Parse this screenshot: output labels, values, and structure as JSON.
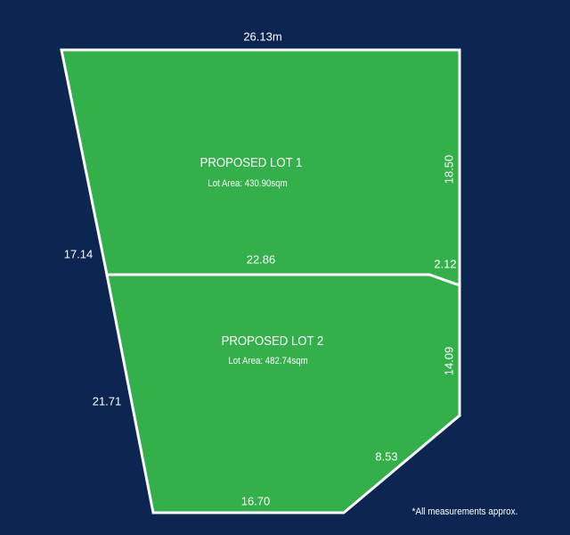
{
  "lots": [
    {
      "title": "PROPOSED LOT 1",
      "area": "Lot Area: 430.90sqm"
    },
    {
      "title": "PROPOSED LOT 2",
      "area": "Lot Area: 482.74sqm"
    }
  ],
  "measurements": [
    "26.13m",
    "18.50",
    "17.14",
    "22.86",
    "2.12",
    "14.09",
    "21.71",
    "8.53",
    "16.70"
  ],
  "note": "*All measurements approx."
}
